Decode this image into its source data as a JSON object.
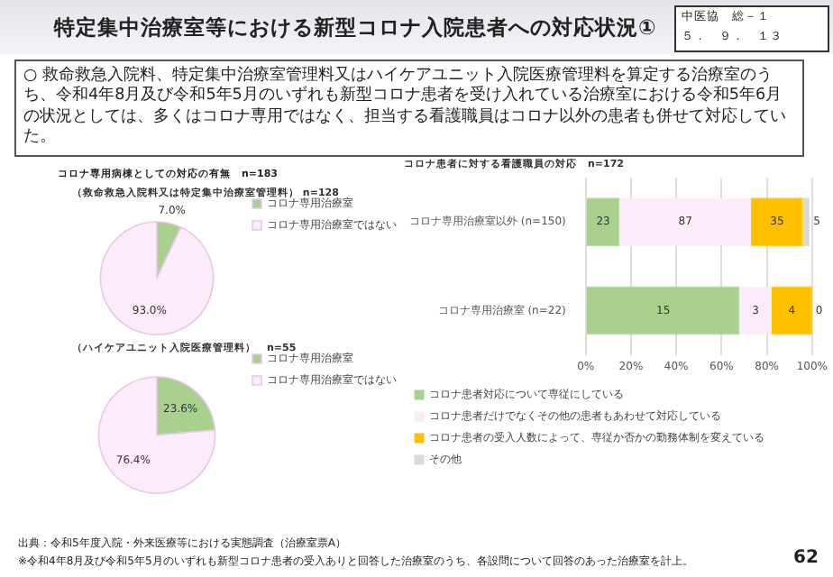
{
  "chart_data": [
    {
      "type": "pie",
      "title": "（救命救急入院料又は特定集中治療室管理料） n=128",
      "categories": [
        "コロナ専用治療室",
        "コロナ専用治療室ではない"
      ],
      "values": [
        7.0,
        93.0
      ],
      "colors": [
        "#a9d18e",
        "#fcecfa"
      ],
      "value_labels": [
        "7.0%",
        "93.0%"
      ],
      "legend": "right",
      "annotations": [
        "特定集中治療室等における新型コロナ入院患者への対応状況①",
        "中医協　総－１",
        "５．　９．　１３",
        "○ 救命救急入院料、特定集中治療室管理料又はハイケアユニット入院医療管理料を算定する治療室のうち、令和4年8月及び令和5年5月のいずれも新型コロナ患者を受け入れている治療室における令和5年6月の状況としては、多くはコロナ専用ではなく、担当する看護職員はコロナ以外の患者も併せて対応していた。",
        "コロナ専用病棟としての対応の有無　n=183",
        "出典：令和5年度入院・外来医療等における実態調査（治療室票A）",
        "※令和4年8月及び令和5年5月のいずれも新型コロナ患者の受入ありと回答した治療室のうち、各設問について回答のあった治療室を計上。",
        "62"
      ]
    },
    {
      "type": "pie",
      "title": "（ハイケアユニット入院医療管理料）　n=55",
      "categories": [
        "コロナ専用治療室",
        "コロナ専用治療室ではない"
      ],
      "values": [
        23.6,
        76.4
      ],
      "colors": [
        "#a9d18e",
        "#fcecfa"
      ],
      "value_labels": [
        "23.6%",
        "76.4%"
      ],
      "legend": "right"
    },
    {
      "type": "bar",
      "orientation": "horizontal",
      "stacked": true,
      "title": "コロナ患者に対する看護職員の対応　n=172",
      "categories": [
        "コロナ専用治療室以外 (n=150)",
        "コロナ専用治療室 (n=22)"
      ],
      "series": [
        {
          "name": "コロナ患者対応について専従にしている",
          "color": "#a9d18e",
          "values": [
            15,
            68
          ]
        },
        {
          "name": "コロナ患者だけでなくその他の患者もあわせて対応している",
          "color": "#fcecfa",
          "values": [
            58,
            14
          ]
        },
        {
          "name": "コロナ患者の受入人数によって、専従か否かの勤務体制を変えている",
          "color": "#ffc000",
          "values": [
            23,
            18
          ]
        },
        {
          "name": "その他",
          "color": "#d9d9d9",
          "values": [
            3,
            0
          ]
        }
      ],
      "annotations": [
        "23",
        "87",
        "35",
        "5",
        "15",
        "3",
        "4",
        "0"
      ],
      "xlim": [
        0,
        100
      ],
      "xticks": [
        {
          "value": 0,
          "label": "0%"
        },
        {
          "value": 20,
          "label": "20%"
        },
        {
          "value": 40,
          "label": "40%"
        },
        {
          "value": 60,
          "label": "60%"
        },
        {
          "value": 80,
          "label": "80%"
        },
        {
          "value": 100,
          "label": "100%"
        }
      ],
      "grid": "x",
      "legend": "bottom"
    }
  ]
}
